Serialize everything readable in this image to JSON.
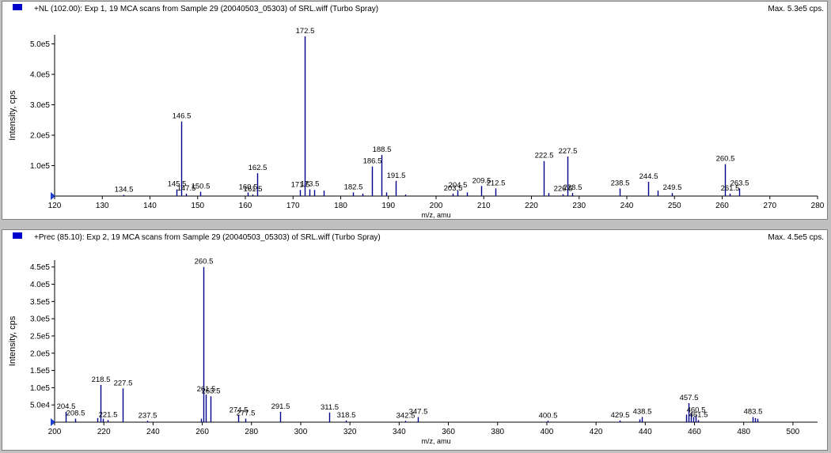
{
  "panes": [
    {
      "id": "top",
      "header": "+NL (102.00): Exp 1, 19 MCA scans from Sample 29 (20040503_05303) of SRL.wiff (Turbo Spray)",
      "max_label": "Max. 5.3e5 cps.",
      "legend_color": "#0000cc"
    },
    {
      "id": "bottom",
      "header": "+Prec (85.10): Exp 2, 19 MCA scans from Sample 29 (20040503_05303) of SRL.wiff (Turbo Spray)",
      "max_label": "Max. 4.5e5 cps.",
      "legend_color": "#0000cc"
    }
  ],
  "chart_data": [
    {
      "type": "bar",
      "title": "+NL (102.00): Exp 1, 19 MCA scans from Sample 29 (20040503_05303) of SRL.wiff (Turbo Spray)",
      "xlabel": "m/z, amu",
      "ylabel": "Intensity, cps",
      "xlim": [
        120,
        280
      ],
      "ylim": [
        0,
        530000
      ],
      "xticks": [
        "120",
        "130",
        "140",
        "150",
        "160",
        "170",
        "180",
        "190",
        "200",
        "210",
        "220",
        "230",
        "240",
        "250",
        "260",
        "270",
        "280"
      ],
      "yticks": [
        "1.0e5",
        "2.0e5",
        "3.0e5",
        "4.0e5",
        "5.0e5"
      ],
      "ytick_values": [
        100000,
        200000,
        300000,
        400000,
        500000
      ],
      "bar_color": "#00008b",
      "peaks": [
        {
          "x": 134.5,
          "y": 4000,
          "label": "134.5"
        },
        {
          "x": 145.5,
          "y": 22000,
          "label": "145.5"
        },
        {
          "x": 146.5,
          "y": 245000,
          "label": "146.5"
        },
        {
          "x": 147.5,
          "y": 8000,
          "label": "147.5"
        },
        {
          "x": 150.5,
          "y": 14000,
          "label": "150.5"
        },
        {
          "x": 160.5,
          "y": 12000,
          "label": "160.5"
        },
        {
          "x": 161.5,
          "y": 5000,
          "label": "161.5"
        },
        {
          "x": 162.5,
          "y": 75000,
          "label": "162.5"
        },
        {
          "x": 171.5,
          "y": 20000,
          "label": "171.5"
        },
        {
          "x": 172.5,
          "y": 525000,
          "label": "172.5"
        },
        {
          "x": 173.5,
          "y": 22000,
          "label": "173.5"
        },
        {
          "x": 174.5,
          "y": 20000,
          "label": ""
        },
        {
          "x": 176.5,
          "y": 18000,
          "label": ""
        },
        {
          "x": 182.5,
          "y": 12000,
          "label": "182.5"
        },
        {
          "x": 184.5,
          "y": 8000,
          "label": ""
        },
        {
          "x": 186.5,
          "y": 97000,
          "label": "186.5"
        },
        {
          "x": 188.5,
          "y": 135000,
          "label": "188.5"
        },
        {
          "x": 189.5,
          "y": 12000,
          "label": ""
        },
        {
          "x": 191.5,
          "y": 50000,
          "label": "191.5"
        },
        {
          "x": 193.5,
          "y": 5000,
          "label": ""
        },
        {
          "x": 203.5,
          "y": 8000,
          "label": "203.5"
        },
        {
          "x": 204.5,
          "y": 18000,
          "label": "204.5"
        },
        {
          "x": 206.5,
          "y": 12000,
          "label": ""
        },
        {
          "x": 209.5,
          "y": 33000,
          "label": "209.5"
        },
        {
          "x": 212.5,
          "y": 25000,
          "label": "212.5"
        },
        {
          "x": 222.5,
          "y": 115000,
          "label": "222.5"
        },
        {
          "x": 223.5,
          "y": 10000,
          "label": ""
        },
        {
          "x": 226.5,
          "y": 6000,
          "label": "226.5"
        },
        {
          "x": 227.5,
          "y": 130000,
          "label": "227.5"
        },
        {
          "x": 228.5,
          "y": 10000,
          "label": "228.5"
        },
        {
          "x": 238.5,
          "y": 25000,
          "label": "238.5"
        },
        {
          "x": 244.5,
          "y": 47000,
          "label": "244.5"
        },
        {
          "x": 246.5,
          "y": 18000,
          "label": ""
        },
        {
          "x": 249.5,
          "y": 10000,
          "label": "249.5"
        },
        {
          "x": 260.5,
          "y": 105000,
          "label": "260.5"
        },
        {
          "x": 261.5,
          "y": 8000,
          "label": "261.5"
        },
        {
          "x": 263.5,
          "y": 25000,
          "label": "263.5"
        }
      ]
    },
    {
      "type": "bar",
      "title": "+Prec (85.10): Exp 2, 19 MCA scans from Sample 29 (20040503_05303) of SRL.wiff (Turbo Spray)",
      "xlabel": "m/z, amu",
      "ylabel": "Intensity, cps",
      "xlim": [
        200,
        510
      ],
      "ylim": [
        0,
        470000
      ],
      "xticks": [
        "200",
        "220",
        "240",
        "260",
        "280",
        "300",
        "320",
        "340",
        "360",
        "380",
        "400",
        "420",
        "440",
        "460",
        "480",
        "500"
      ],
      "yticks": [
        "5.0e4",
        "1.0e5",
        "1.5e5",
        "2.0e5",
        "2.5e5",
        "3.0e5",
        "3.5e5",
        "4.0e5",
        "4.5e5"
      ],
      "ytick_values": [
        50000,
        100000,
        150000,
        200000,
        250000,
        300000,
        350000,
        400000,
        450000
      ],
      "bar_color": "#00008b",
      "peaks": [
        {
          "x": 204.5,
          "y": 30000,
          "label": "204.5"
        },
        {
          "x": 208.5,
          "y": 10000,
          "label": "208.5"
        },
        {
          "x": 217.5,
          "y": 12000,
          "label": ""
        },
        {
          "x": 218.5,
          "y": 108000,
          "label": "218.5"
        },
        {
          "x": 219.5,
          "y": 10000,
          "label": ""
        },
        {
          "x": 221.5,
          "y": 6000,
          "label": "221.5"
        },
        {
          "x": 227.5,
          "y": 98000,
          "label": "227.5"
        },
        {
          "x": 237.5,
          "y": 4000,
          "label": "237.5"
        },
        {
          "x": 259.5,
          "y": 10000,
          "label": ""
        },
        {
          "x": 260.5,
          "y": 450000,
          "label": "260.5"
        },
        {
          "x": 261.5,
          "y": 80000,
          "label": "261.5"
        },
        {
          "x": 263.5,
          "y": 75000,
          "label": "263.5"
        },
        {
          "x": 274.5,
          "y": 20000,
          "label": "274.5"
        },
        {
          "x": 277.5,
          "y": 10000,
          "label": "277.5"
        },
        {
          "x": 291.5,
          "y": 30000,
          "label": "291.5"
        },
        {
          "x": 311.5,
          "y": 28000,
          "label": "311.5"
        },
        {
          "x": 318.5,
          "y": 5000,
          "label": "318.5"
        },
        {
          "x": 342.5,
          "y": 4000,
          "label": "342.5"
        },
        {
          "x": 347.5,
          "y": 15000,
          "label": "347.5"
        },
        {
          "x": 400.5,
          "y": 4000,
          "label": "400.5"
        },
        {
          "x": 429.5,
          "y": 5000,
          "label": "429.5"
        },
        {
          "x": 437.5,
          "y": 8000,
          "label": ""
        },
        {
          "x": 438.5,
          "y": 15000,
          "label": "438.5"
        },
        {
          "x": 456.5,
          "y": 22000,
          "label": ""
        },
        {
          "x": 457.5,
          "y": 55000,
          "label": "457.5"
        },
        {
          "x": 458.5,
          "y": 25000,
          "label": ""
        },
        {
          "x": 459.5,
          "y": 15000,
          "label": ""
        },
        {
          "x": 460.5,
          "y": 20000,
          "label": "460.5"
        },
        {
          "x": 461.5,
          "y": 6000,
          "label": "461.5"
        },
        {
          "x": 483.5,
          "y": 15000,
          "label": "483.5"
        },
        {
          "x": 484.5,
          "y": 12000,
          "label": ""
        },
        {
          "x": 485.5,
          "y": 10000,
          "label": ""
        }
      ]
    }
  ]
}
